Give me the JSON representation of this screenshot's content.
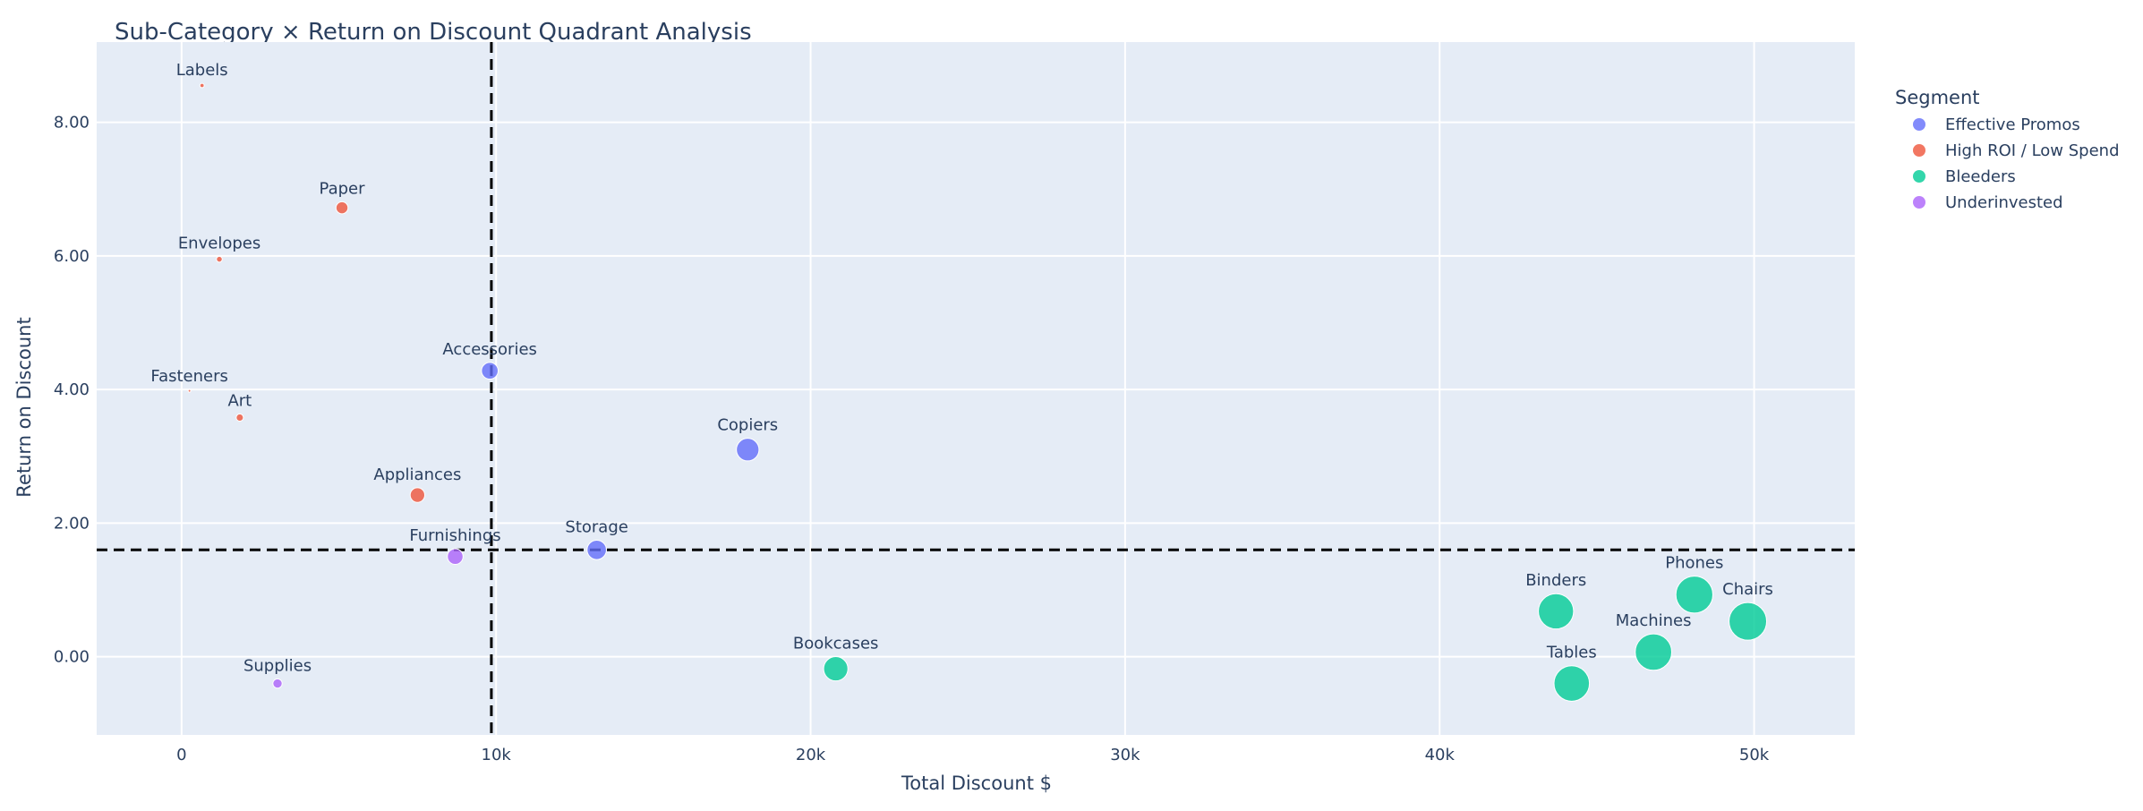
{
  "chart_data": {
    "type": "scatter",
    "title": "Sub-Category × Return on Discount Quadrant Analysis",
    "xlabel": "Total Discount $",
    "ylabel": "Return on Discount",
    "xlim": [
      -2700,
      53200
    ],
    "ylim": [
      -1.17,
      9.2
    ],
    "x_ticks": [
      0,
      10000,
      20000,
      30000,
      40000,
      50000
    ],
    "x_tick_labels": [
      "0",
      "10k",
      "20k",
      "30k",
      "40k",
      "50k"
    ],
    "y_ticks": [
      0,
      2,
      4,
      6,
      8
    ],
    "y_tick_labels": [
      "0.00",
      "2.00",
      "4.00",
      "6.00",
      "8.00"
    ],
    "grid": true,
    "reference_lines": {
      "x": 9850,
      "y": 1.6,
      "style": "dashed"
    },
    "legend": {
      "title": "Segment",
      "position": "top-right",
      "entries": [
        {
          "name": "Effective Promos",
          "color": "#636efa"
        },
        {
          "name": "High ROI / Low Spend",
          "color": "#ef553b"
        },
        {
          "name": "Bleeders",
          "color": "#00cc96"
        },
        {
          "name": "Underinvested",
          "color": "#ab63fa"
        }
      ]
    },
    "series": [
      {
        "name": "Effective Promos",
        "color": "#636efa",
        "points": [
          {
            "label": "Accessories",
            "x": 9800,
            "y": 4.28,
            "size": 9800
          },
          {
            "label": "Copiers",
            "x": 18000,
            "y": 3.1,
            "size": 18000
          },
          {
            "label": "Storage",
            "x": 13200,
            "y": 1.6,
            "size": 13200
          }
        ]
      },
      {
        "name": "High ROI / Low Spend",
        "color": "#ef553b",
        "points": [
          {
            "label": "Labels",
            "x": 650,
            "y": 8.55,
            "size": 650
          },
          {
            "label": "Paper",
            "x": 5100,
            "y": 6.72,
            "size": 5100
          },
          {
            "label": "Envelopes",
            "x": 1200,
            "y": 5.95,
            "size": 1200
          },
          {
            "label": "Fasteners",
            "x": 250,
            "y": 3.98,
            "size": 250
          },
          {
            "label": "Art",
            "x": 1850,
            "y": 3.58,
            "size": 1850
          },
          {
            "label": "Appliances",
            "x": 7500,
            "y": 2.42,
            "size": 7500
          }
        ]
      },
      {
        "name": "Bleeders",
        "color": "#00cc96",
        "points": [
          {
            "label": "Bookcases",
            "x": 20800,
            "y": -0.18,
            "size": 20800
          },
          {
            "label": "Binders",
            "x": 43700,
            "y": 0.68,
            "size": 43700
          },
          {
            "label": "Phones",
            "x": 48100,
            "y": 0.93,
            "size": 48100
          },
          {
            "label": "Chairs",
            "x": 49800,
            "y": 0.53,
            "size": 49800
          },
          {
            "label": "Machines",
            "x": 46800,
            "y": 0.07,
            "size": 46800
          },
          {
            "label": "Tables",
            "x": 44200,
            "y": -0.4,
            "size": 44200
          }
        ]
      },
      {
        "name": "Underinvested",
        "color": "#ab63fa",
        "points": [
          {
            "label": "Furnishings",
            "x": 8700,
            "y": 1.5,
            "size": 8700
          },
          {
            "label": "Supplies",
            "x": 3050,
            "y": -0.4,
            "size": 3050
          }
        ]
      }
    ]
  }
}
